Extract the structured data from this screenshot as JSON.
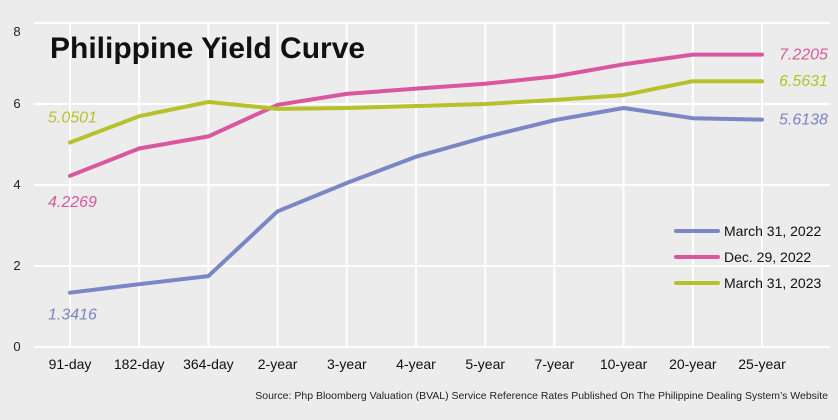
{
  "chart_data": {
    "type": "line",
    "title": "Philippine Yield Curve",
    "source": "Source: Php Bloomberg Valuation (BVAL) Service Reference Rates Published On The Philippine Dealing System’s Website",
    "categories": [
      "91-day",
      "182-day",
      "364-day",
      "2-year",
      "3-year",
      "4-year",
      "5-year",
      "7-year",
      "10-year",
      "20-year",
      "25-year"
    ],
    "ylim": [
      0,
      8
    ],
    "yticks": [
      0,
      2,
      4,
      6,
      8
    ],
    "grid": true,
    "legend_position": "right",
    "series": [
      {
        "name": "March 31, 2022",
        "color": "#7b86c4",
        "values": [
          1.3416,
          1.55,
          1.75,
          3.35,
          4.05,
          4.7,
          5.18,
          5.6,
          5.9,
          5.65,
          5.6138
        ],
        "first_label": "1.3416",
        "last_label": "5.6138"
      },
      {
        "name": "Dec. 29, 2022",
        "color": "#d9579e",
        "values": [
          4.2269,
          4.9,
          5.2,
          5.98,
          6.25,
          6.38,
          6.5,
          6.68,
          6.98,
          7.2205,
          7.2205
        ],
        "first_label": "4.2269",
        "last_label": "7.2205"
      },
      {
        "name": "March 31, 2023",
        "color": "#b6c12c",
        "values": [
          5.0501,
          5.7,
          6.05,
          5.88,
          5.9,
          5.95,
          6.0,
          6.1,
          6.22,
          6.5631,
          6.5631
        ],
        "first_label": "5.0501",
        "last_label": "6.5631"
      }
    ]
  }
}
